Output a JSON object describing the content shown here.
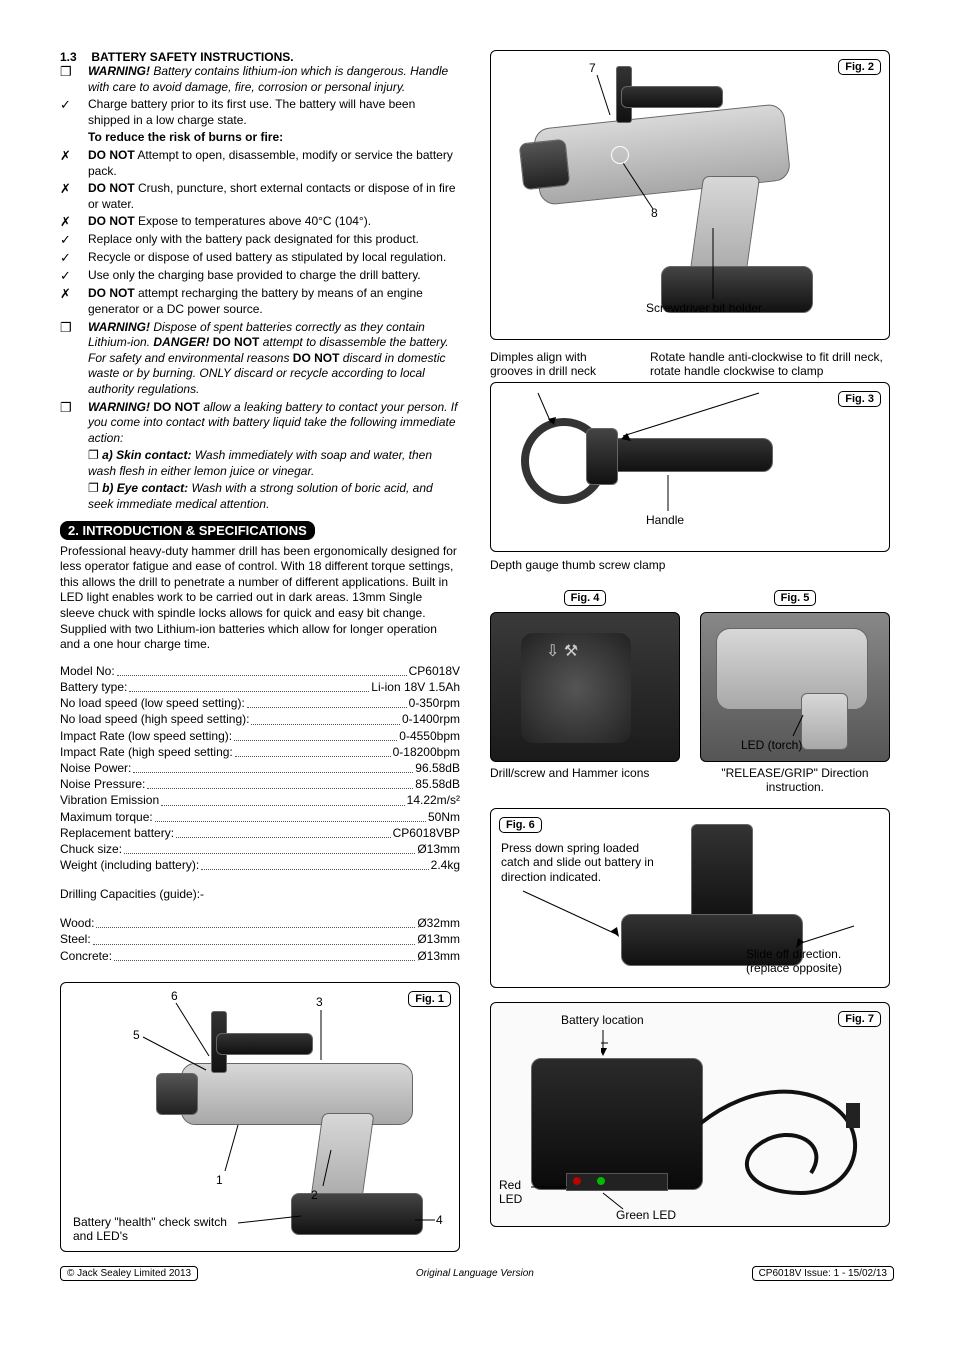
{
  "section13": {
    "num": "1.3",
    "title": "BATTERY SAFETY INSTRUCTIONS.",
    "items": [
      {
        "mark": "❐",
        "bold": "WARNING!",
        "italic": " Battery contains lithium-ion which is dangerous. Handle with care to avoid damage, fire, corrosion or personal injury."
      },
      {
        "mark": "✓",
        "text": "Charge battery prior to its first use. The battery will have been shipped in a low charge state."
      },
      {
        "mark": "",
        "bold": "To reduce the risk of burns or fire:"
      },
      {
        "mark": "✗",
        "bold": "DO NOT",
        "text": " Attempt to open, disassemble, modify or service the battery pack."
      },
      {
        "mark": "✗",
        "bold": "DO NOT",
        "text": "  Crush, puncture, short external contacts or dispose of in fire or water."
      },
      {
        "mark": "✗",
        "bold": "DO NOT",
        "text": " Expose to temperatures above 40°C (104°)."
      },
      {
        "mark": "✓",
        "text": "Replace only with the battery pack designated for this product."
      },
      {
        "mark": "✓",
        "text": "Recycle or dispose of used battery as stipulated by local regulation."
      },
      {
        "mark": "✓",
        "text": "Use only the charging base provided to charge the drill battery."
      },
      {
        "mark": "✗",
        "bold": "DO NOT",
        "text": " attempt recharging the battery by means of an engine generator or a DC power source."
      },
      {
        "mark": "❐",
        "warn": "WARNING!",
        "italic1": " Dispose of spent batteries correctly as they contain Lithium-ion. ",
        "danger": "DANGER! ",
        "bold2": "DO NOT",
        "italic2": " attempt to disassemble the battery. For safety and environmental reasons ",
        "bold3": "DO NOT",
        "italic3": " discard in domestic waste or by burning. ONLY discard or recycle according to local authority regulations."
      },
      {
        "mark": "❐",
        "warn": "WARNING! ",
        "bold2": "DO NOT",
        "italic2": " allow a leaking battery to contact your person. If you come into contact with battery liquid take the following immediate action:"
      },
      {
        "mark": "",
        "sub": true,
        "subMark": "❐ ",
        "bold": "a) Skin contact:",
        "italic": " Wash immediately with soap and water, then wash flesh in either lemon juice or vinegar."
      },
      {
        "mark": "",
        "sub": true,
        "subMark": "❐ ",
        "bold": "b) Eye contact:",
        "italic": " Wash with a strong solution of boric acid, and seek immediate medical attention."
      }
    ]
  },
  "section2": {
    "bar": "2.   INTRODUCTION & SPECIFICATIONS",
    "intro": "Professional heavy-duty hammer drill has been ergonomically designed for less operator fatigue and ease of control. With 18 different torque settings, this allows the drill to penetrate a number of different applications. Built in LED light enables work to be carried out in dark areas. 13mm Single sleeve chuck with spindle locks allows for quick and easy bit change. Supplied with two Lithium-ion batteries which allow for longer operation and a one hour charge time.",
    "specs": [
      {
        "l": "Model No:",
        "v": "CP6018V"
      },
      {
        "l": "Battery type:",
        "v": "Li-ion 18V 1.5Ah"
      },
      {
        "l": "No load speed (low speed setting):",
        "v": "0-350rpm"
      },
      {
        "l": "No load speed (high speed setting):",
        "v": "0-1400rpm"
      },
      {
        "l": "Impact Rate (low speed setting):",
        "v": "0-4550bpm"
      },
      {
        "l": "Impact Rate (high speed setting:",
        "v": "0-18200bpm"
      },
      {
        "l": "Noise Power:",
        "v": "96.58dB"
      },
      {
        "l": "Noise Pressure:",
        "v": "85.58dB"
      },
      {
        "l": "Vibration Emission",
        "v": "14.22m/s²"
      },
      {
        "l": "Maximum torque:",
        "v": "50Nm"
      },
      {
        "l": "Replacement battery:",
        "v": "CP6018VBP"
      },
      {
        "l": "Chuck size:",
        "v": "Ø13mm"
      },
      {
        "l": "Weight (including battery):",
        "v": "2.4kg"
      }
    ],
    "drillCapTitle": "Drilling Capacities (guide):-",
    "drillCaps": [
      {
        "l": "Wood:",
        "v": "Ø32mm"
      },
      {
        "l": "Steel:",
        "v": "Ø13mm"
      },
      {
        "l": "Concrete:",
        "v": "Ø13mm"
      }
    ]
  },
  "fig1": {
    "label": "Fig. 1",
    "n1": "1",
    "n2": "2",
    "n3": "3",
    "n4": "4",
    "n5": "5",
    "n6": "6",
    "caption": "Battery \"health\" check switch and LED's"
  },
  "fig2": {
    "label": "Fig. 2",
    "n7": "7",
    "n8": "8",
    "caption": "Screwdriver bit holder"
  },
  "fig3": {
    "label": "Fig. 3",
    "left": "Dimples align with grooves in drill neck",
    "right": "Rotate handle anti-clockwise to fit drill neck, rotate handle clockwise to clamp",
    "handle": "Handle",
    "below": "Depth gauge thumb screw clamp"
  },
  "fig4": {
    "label": "Fig. 4",
    "caption": "Drill/screw and Hammer icons"
  },
  "fig5": {
    "label": "Fig. 5",
    "led": "LED (torch)",
    "caption": "\"RELEASE/GRIP\" Direction instruction."
  },
  "fig6": {
    "label": "Fig. 6",
    "press": "Press down spring loaded catch and slide out battery in direction indicated.",
    "slide": "Slide off direction. (replace opposite)"
  },
  "fig7": {
    "label": "Fig. 7",
    "loc": "Battery location",
    "red": "Red LED",
    "green": "Green LED"
  },
  "footer": {
    "left": "© Jack Sealey Limited 2013",
    "center": "Original Language Version",
    "right": "CP6018V   Issue: 1 - 15/02/13"
  }
}
